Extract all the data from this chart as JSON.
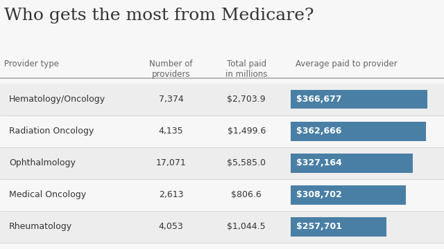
{
  "title": "Who gets the most from Medicare?",
  "title_fontsize": 18,
  "header_col1": "Provider type",
  "header_col2": "Number of\nproviders",
  "header_col3": "Total paid\nin millions",
  "header_col4": "Average paid to provider",
  "rows": [
    {
      "provider": "Hematology/Oncology",
      "num_providers": "7,374",
      "total_paid": "$2,703.9",
      "avg_paid": "$366,677",
      "avg_value": 366677
    },
    {
      "provider": "Radiation Oncology",
      "num_providers": "4,135",
      "total_paid": "$1,499.6",
      "avg_paid": "$362,666",
      "avg_value": 362666
    },
    {
      "provider": "Ophthalmology",
      "num_providers": "17,071",
      "total_paid": "$5,585.0",
      "avg_paid": "$327,164",
      "avg_value": 327164
    },
    {
      "provider": "Medical Oncology",
      "num_providers": "2,613",
      "total_paid": "$806.6",
      "avg_paid": "$308,702",
      "avg_value": 308702
    },
    {
      "provider": "Rheumatology",
      "num_providers": "4,053",
      "total_paid": "$1,044.5",
      "avg_paid": "$257,701",
      "avg_value": 257701
    }
  ],
  "bar_color": "#4a7fa5",
  "bar_text_color": "#ffffff",
  "bg_color_odd": "#ededed",
  "bg_color_even": "#f7f7f7",
  "header_line_color": "#aaaaaa",
  "text_color": "#333333",
  "header_text_color": "#666666",
  "max_bar_value": 400000,
  "fig_bg_color": "#f7f7f7"
}
